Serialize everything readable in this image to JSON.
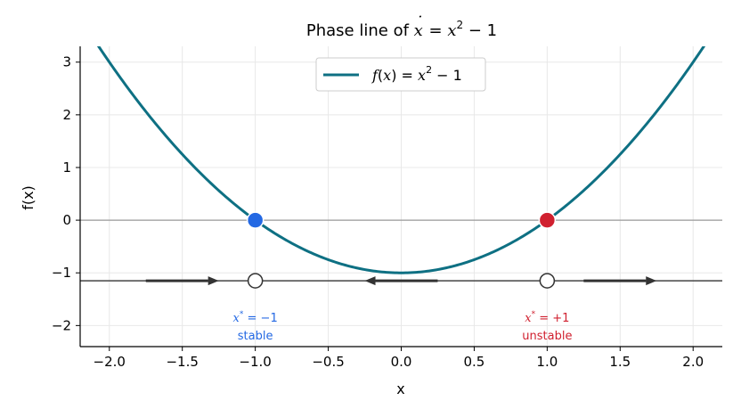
{
  "chart_data": {
    "type": "line",
    "title": {
      "prefix": "Phase line of ",
      "var": "x",
      "dot": "˙",
      "eq": " = ",
      "var2": "x",
      "exp": "2",
      "suffix": " − 1"
    },
    "xlabel": "x",
    "ylabel": "f(x)",
    "xlim": [
      -2.2,
      2.2
    ],
    "ylim": [
      -2.4,
      3.3
    ],
    "xticks": [
      -2.0,
      -1.5,
      -1.0,
      -0.5,
      0.0,
      0.5,
      1.0,
      1.5,
      2.0
    ],
    "yticks": [
      -2,
      -1,
      0,
      1,
      2,
      3
    ],
    "grid": true,
    "legend_position": "top-center",
    "series": [
      {
        "name": "f(x) = x² − 1",
        "legend": {
          "f": "f",
          "open": "(",
          "x": "x",
          "close": ") = ",
          "x2": "x",
          "exp": "2",
          "tail": " − 1"
        },
        "function": "x^2 - 1",
        "color": "#0e7083"
      }
    ],
    "zero_line": {
      "y": 0,
      "color": "#999999"
    },
    "phase_line": {
      "y": -1.15,
      "color": "#444444",
      "arrows": [
        {
          "from": -1.75,
          "to": -1.25
        },
        {
          "from": 0.25,
          "to": -0.25
        },
        {
          "from": 1.25,
          "to": 1.75
        }
      ]
    },
    "equilibria": [
      {
        "x": -1,
        "y": 0,
        "color": "#2368e3",
        "eq_label": {
          "sym": "x",
          "star": "*",
          "rest": " = −1"
        },
        "stability": "stable"
      },
      {
        "x": 1,
        "y": 0,
        "color": "#d0202f",
        "eq_label": {
          "sym": "x",
          "star": "*",
          "rest": " = +1"
        },
        "stability": "unstable"
      }
    ]
  }
}
